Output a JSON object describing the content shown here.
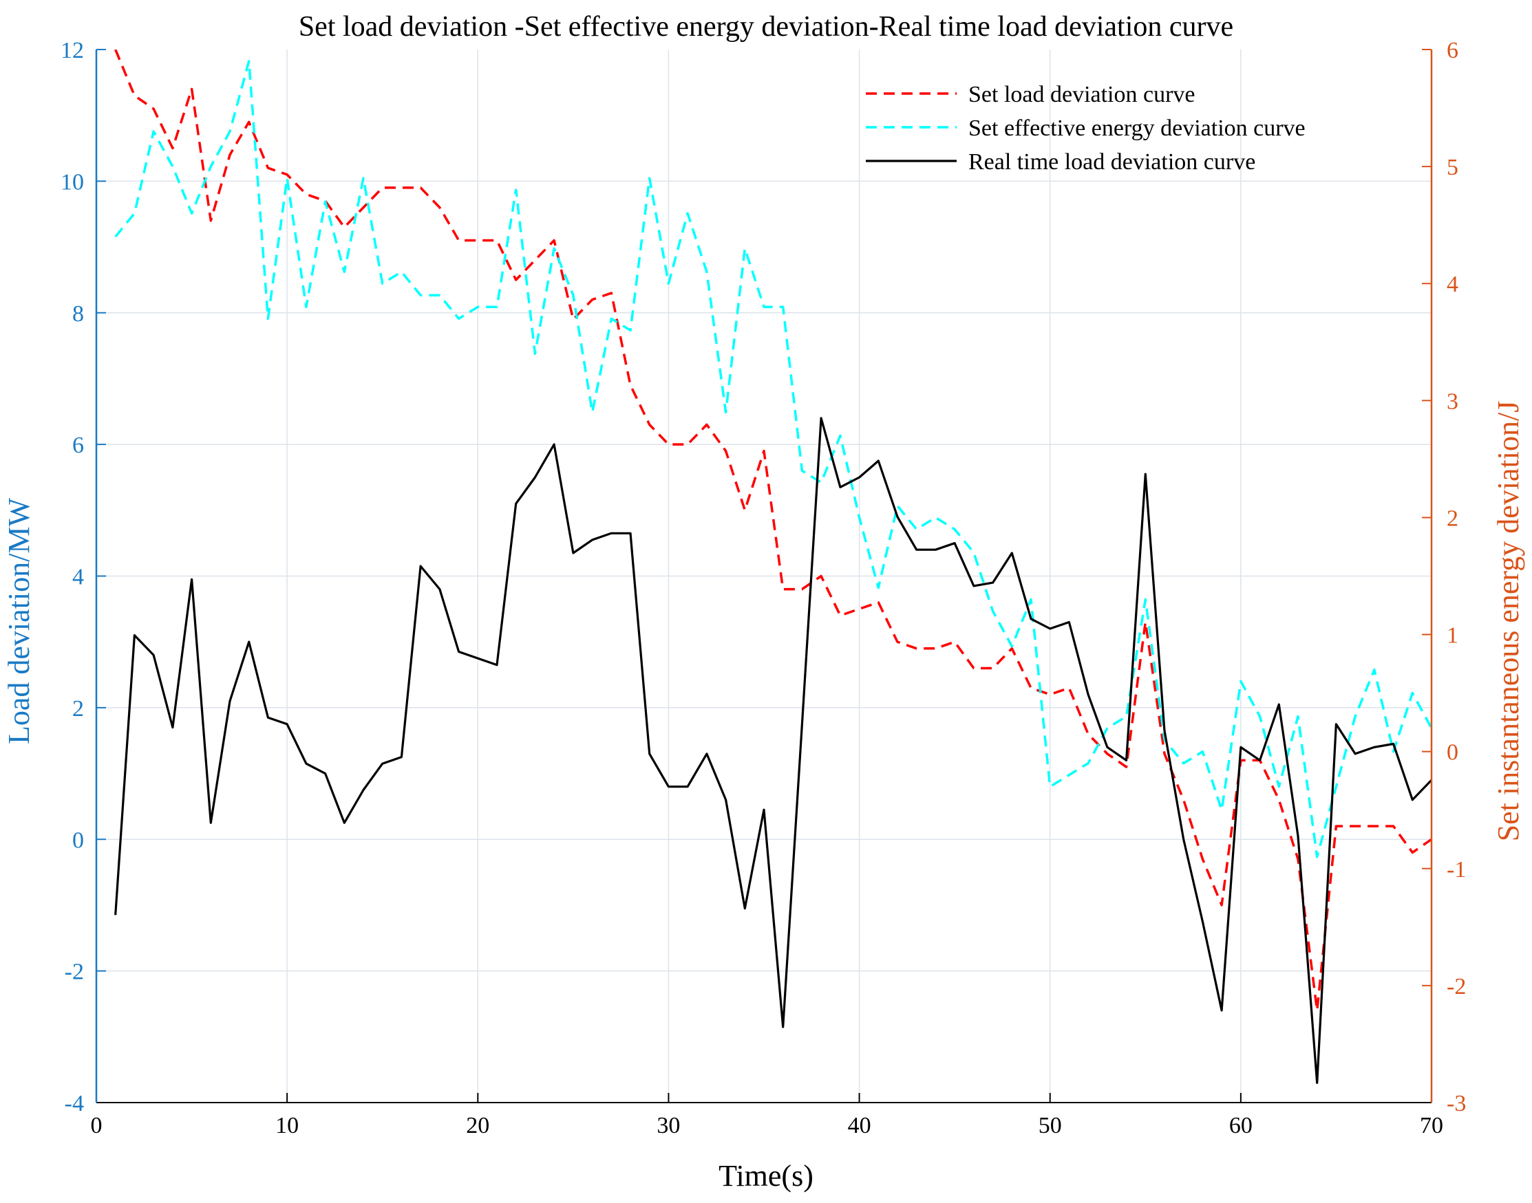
{
  "chart_data": {
    "type": "line",
    "title": "Set load deviation -Set effective energy deviation-Real time load deviation curve",
    "xlabel": "Time(s)",
    "ylabel": "Load deviation/MW",
    "y2label": "Set instantaneous energy deviation/J",
    "xlim": [
      0,
      70
    ],
    "ylim": [
      -4,
      12
    ],
    "y2lim": [
      -3,
      6
    ],
    "xticks": [
      "0",
      "10",
      "20",
      "30",
      "40",
      "50",
      "60",
      "70"
    ],
    "yticks": [
      "-4",
      "-2",
      "0",
      "2",
      "4",
      "6",
      "8",
      "10",
      "12"
    ],
    "y2ticks": [
      "-3",
      "-2",
      "-1",
      "0",
      "1",
      "2",
      "3",
      "4",
      "5",
      "6"
    ],
    "grid": true,
    "legend_position": "top-right",
    "colors": {
      "left_axis": "#1a7ac4",
      "right_axis": "#d9541a",
      "set_load": "#ff0000",
      "effective_energy": "#00ffff",
      "real_time": "#000000"
    },
    "x": [
      1,
      2,
      3,
      4,
      5,
      6,
      7,
      8,
      9,
      10,
      11,
      12,
      13,
      14,
      15,
      16,
      17,
      18,
      19,
      20,
      21,
      22,
      23,
      24,
      25,
      26,
      27,
      28,
      29,
      30,
      31,
      32,
      33,
      34,
      35,
      36,
      37,
      38,
      39,
      40,
      41,
      42,
      43,
      44,
      45,
      46,
      47,
      48,
      49,
      50,
      51,
      52,
      53,
      54,
      55,
      56,
      57,
      58,
      59,
      60,
      61,
      62,
      63,
      64,
      65,
      66,
      67,
      68,
      69,
      70
    ],
    "series": [
      {
        "name": "Set load deviation curve",
        "axis": "left",
        "style": "dashed",
        "values": [
          12.0,
          11.3,
          11.1,
          10.5,
          11.4,
          9.4,
          10.4,
          10.9,
          10.2,
          10.1,
          9.8,
          9.7,
          9.3,
          9.6,
          9.9,
          9.9,
          9.9,
          9.6,
          9.1,
          9.1,
          9.1,
          8.5,
          8.8,
          9.1,
          7.9,
          8.2,
          8.3,
          6.9,
          6.3,
          6.0,
          6.0,
          6.3,
          5.9,
          5.0,
          5.9,
          3.8,
          3.8,
          4.0,
          3.4,
          3.5,
          3.6,
          3.0,
          2.9,
          2.9,
          3.0,
          2.6,
          2.6,
          2.9,
          2.3,
          2.2,
          2.3,
          1.6,
          1.3,
          1.1,
          3.3,
          1.3,
          0.6,
          -0.3,
          -1.0,
          1.2,
          1.2,
          0.6,
          -0.3,
          -2.6,
          0.2,
          0.2,
          0.2,
          0.2,
          -0.2,
          0.0
        ]
      },
      {
        "name": "Set effective energy deviation curve",
        "axis": "right",
        "style": "dashed",
        "values": [
          4.4,
          4.6,
          5.3,
          5.0,
          4.6,
          5.0,
          5.3,
          5.9,
          3.7,
          4.9,
          3.8,
          4.7,
          4.1,
          4.9,
          4.0,
          4.1,
          3.9,
          3.9,
          3.7,
          3.8,
          3.8,
          4.8,
          3.4,
          4.3,
          3.9,
          2.9,
          3.7,
          3.6,
          4.9,
          4.0,
          4.6,
          4.1,
          2.9,
          4.3,
          3.8,
          3.8,
          2.4,
          2.3,
          2.7,
          2.0,
          1.4,
          2.1,
          1.9,
          2.0,
          1.9,
          1.7,
          1.2,
          0.9,
          1.3,
          -0.3,
          -0.2,
          -0.1,
          0.2,
          0.3,
          1.3,
          0.1,
          -0.1,
          0.0,
          -0.5,
          0.6,
          0.3,
          -0.3,
          0.3,
          -0.9,
          -0.3,
          0.3,
          0.7,
          0.0,
          0.5,
          0.2
        ]
      },
      {
        "name": "Real time load deviation curve",
        "axis": "left",
        "style": "solid",
        "values": [
          -1.15,
          3.1,
          2.8,
          1.7,
          3.95,
          0.25,
          2.1,
          3.0,
          1.85,
          1.75,
          1.15,
          1.0,
          0.25,
          0.75,
          1.15,
          1.25,
          4.15,
          3.8,
          2.85,
          2.75,
          2.65,
          5.1,
          5.5,
          6.0,
          4.35,
          4.55,
          4.65,
          4.65,
          1.3,
          0.8,
          0.8,
          1.3,
          0.6,
          -1.05,
          0.45,
          -2.85,
          1.75,
          6.4,
          5.35,
          5.5,
          5.75,
          4.9,
          4.4,
          4.4,
          4.5,
          3.85,
          3.9,
          4.35,
          3.35,
          3.2,
          3.3,
          2.2,
          1.4,
          1.2,
          5.55,
          1.65,
          0.0,
          -1.25,
          -2.6,
          1.4,
          1.2,
          2.05,
          0.05,
          -3.7,
          1.75,
          1.3,
          1.4,
          1.45,
          0.6,
          0.9
        ]
      }
    ]
  }
}
